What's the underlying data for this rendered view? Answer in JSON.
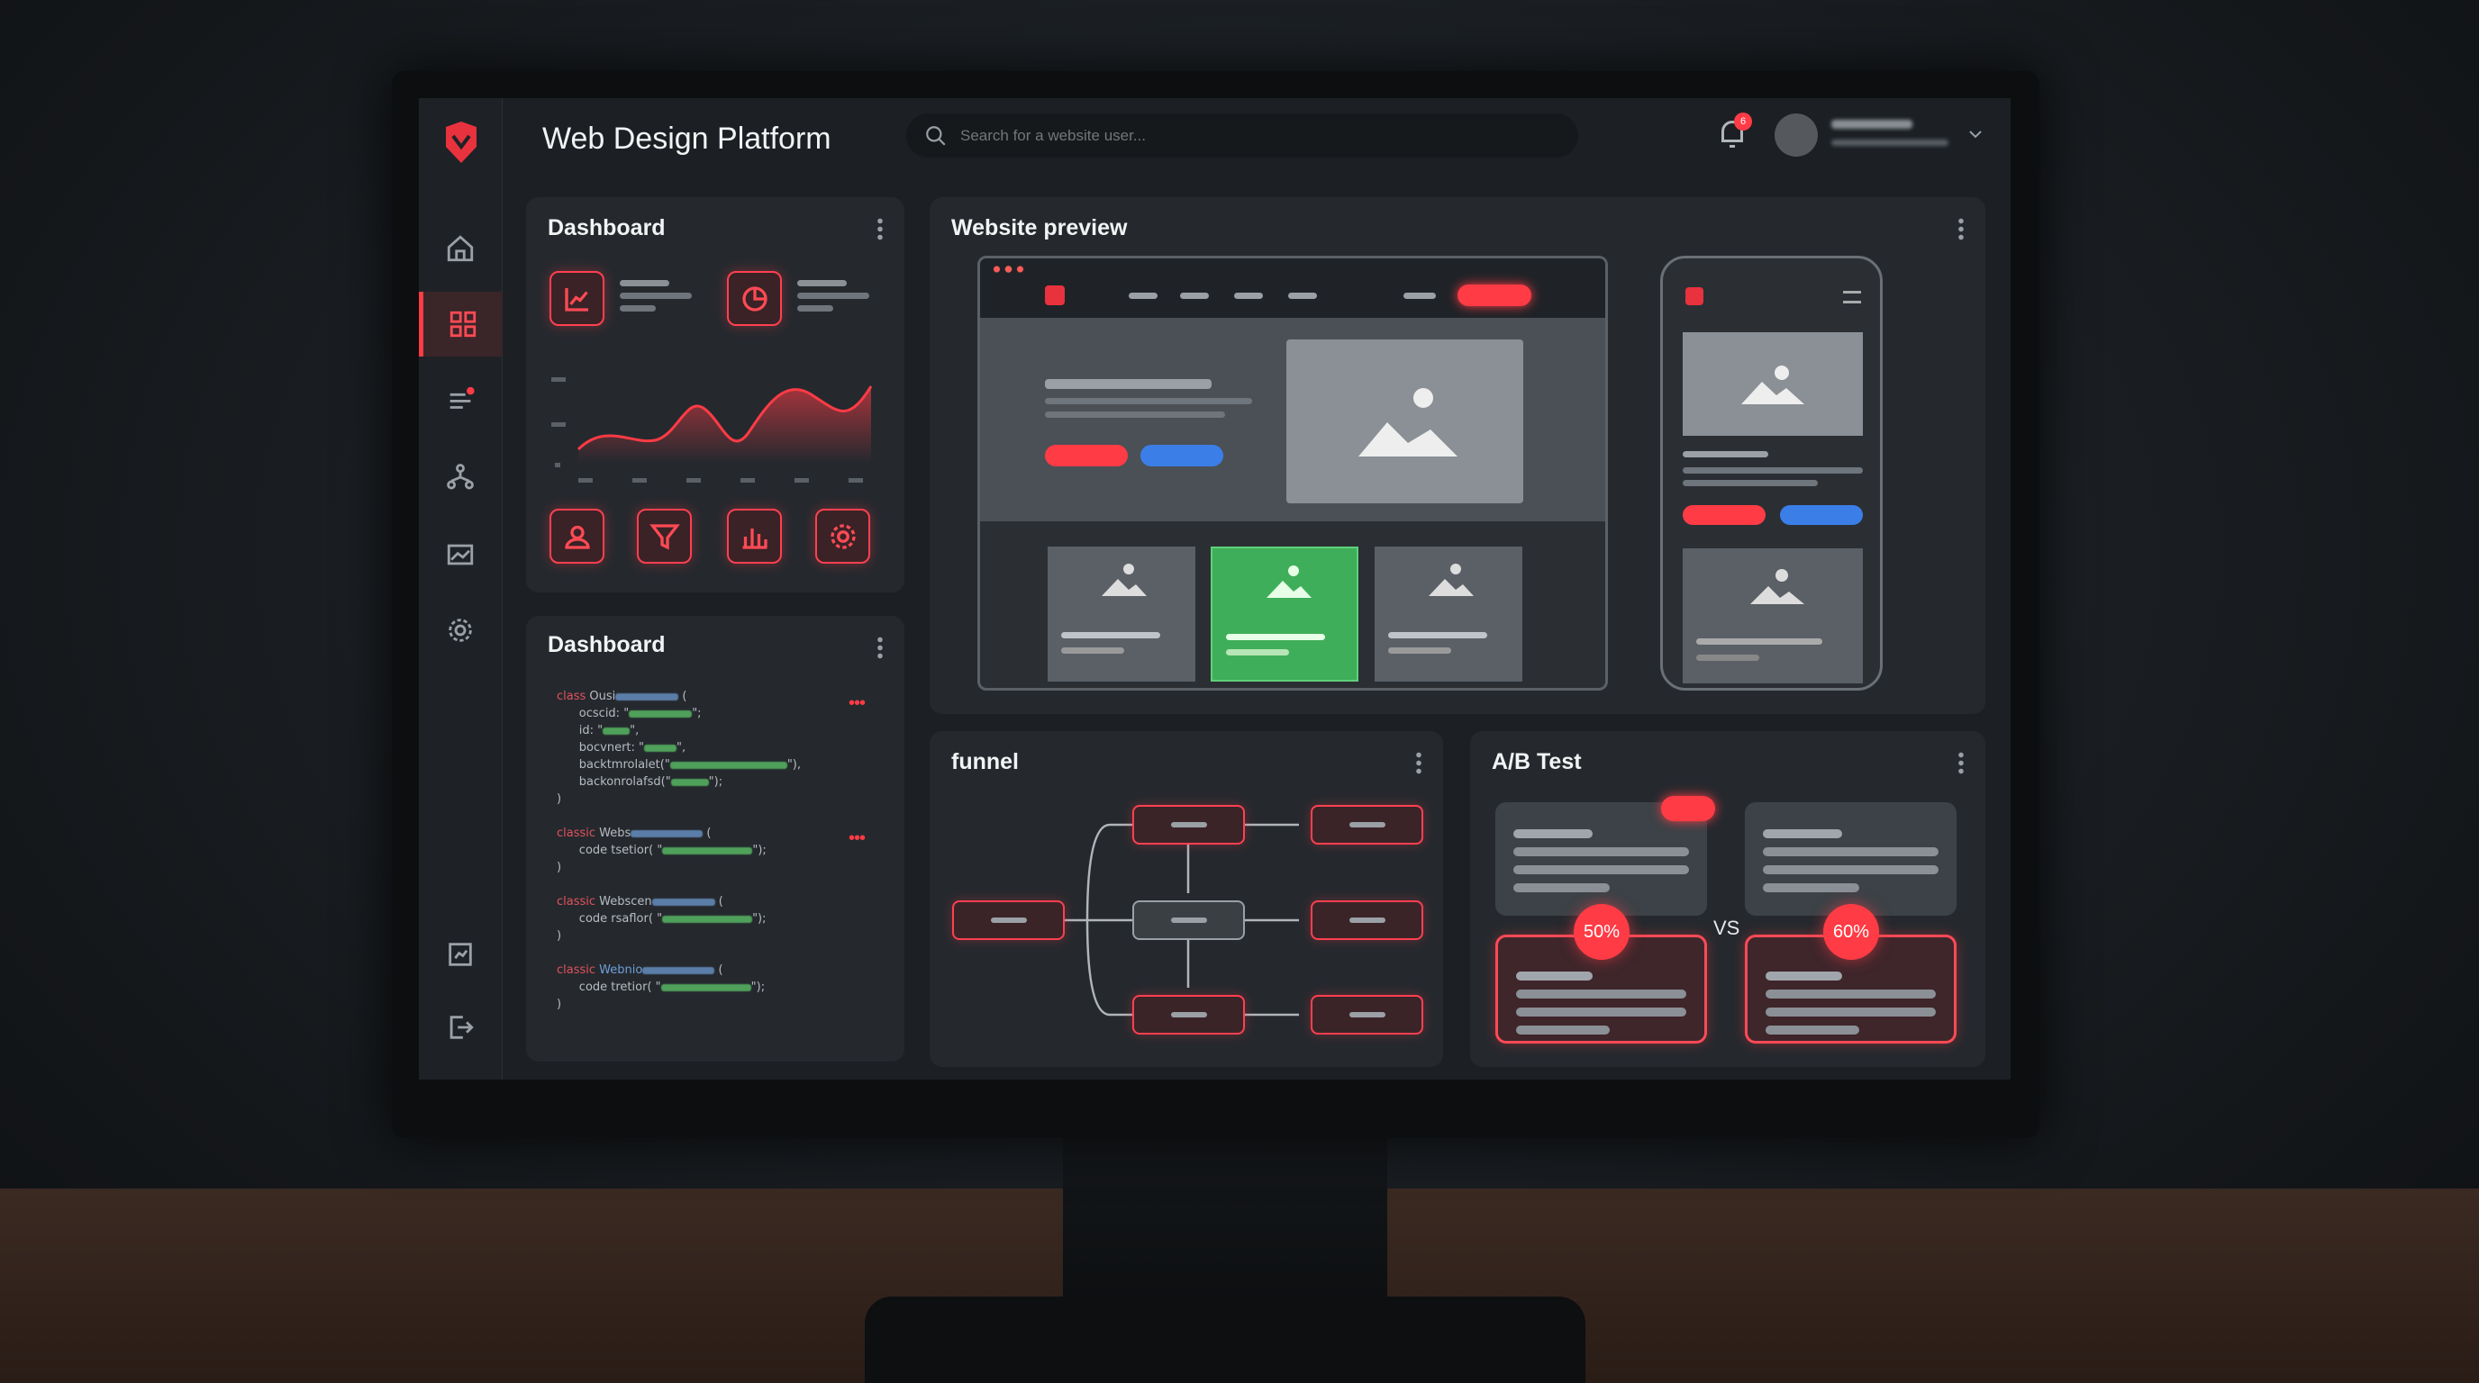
{
  "header": {
    "title": "Web Design Platform",
    "search_placeholder": "Search for a website user...",
    "notification_count": "6"
  },
  "sidebar": {
    "items": [
      {
        "icon": "home-icon"
      },
      {
        "icon": "grid-icon",
        "active": true
      },
      {
        "icon": "list-icon",
        "badge": true
      },
      {
        "icon": "network-icon"
      },
      {
        "icon": "image-icon"
      },
      {
        "icon": "gear-icon"
      },
      {
        "icon": "chart-doc-icon"
      },
      {
        "icon": "logout-icon"
      }
    ]
  },
  "dashboard_chart": {
    "title": "Dashboard",
    "top_icons": [
      "line-chart-icon",
      "pie-chart-icon"
    ],
    "bottom_icons": [
      "users-icon",
      "filter-icon",
      "bar-chart-icon",
      "settings-icon"
    ]
  },
  "dashboard_code": {
    "title": "Dashboard",
    "lines": [
      {
        "kw": "class",
        "name": "Ousi"
      },
      {
        "text": "ocscid:"
      },
      {
        "text": "id:"
      },
      {
        "text": "bocvnert:"
      },
      {
        "text": "backtmrolalet("
      },
      {
        "text": "backonrolafsd("
      },
      {
        "kw": "classic",
        "name": "Webs"
      },
      {
        "text": "code tsetior("
      },
      {
        "kw": "classic",
        "name": "Webscen"
      },
      {
        "text": "code rsaflor("
      },
      {
        "kw": "classic",
        "name": "Webnio"
      },
      {
        "text": "code tretior("
      }
    ]
  },
  "website_preview": {
    "title": "Website preview"
  },
  "funnel": {
    "title": "funnel"
  },
  "ab_test": {
    "title": "A/B Test",
    "variant_a": "50%",
    "variant_b": "60%",
    "vs_label": "VS"
  },
  "colors": {
    "accent": "#ff3b45",
    "blue": "#3b7ee8",
    "green": "#3fae5a",
    "panel": "#25292e"
  }
}
